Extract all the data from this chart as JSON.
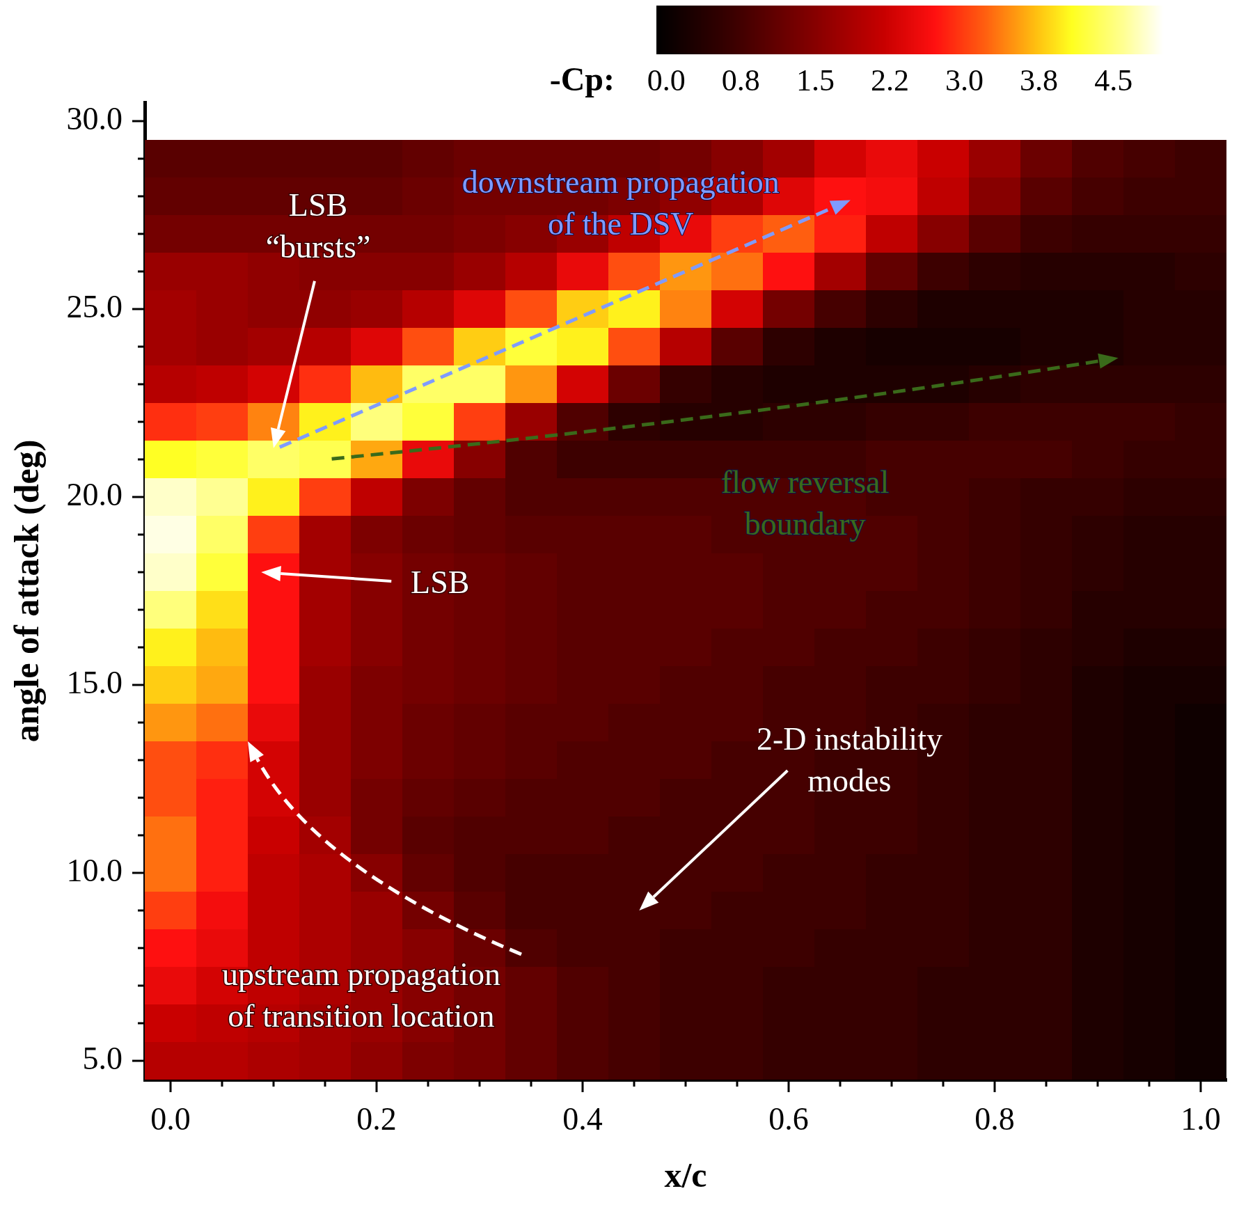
{
  "chart_data": {
    "type": "heatmap",
    "xlabel": "x/c",
    "ylabel": "angle of attack (deg)",
    "clabel": "-Cp:",
    "categories": [
      "0.0",
      null,
      null,
      null,
      "0.2",
      null,
      null,
      null,
      "0.4",
      null,
      null,
      null,
      "0.6",
      null,
      null,
      null,
      "0.8",
      null,
      null,
      null,
      "1.0"
    ],
    "y_categories": [
      "30.0",
      null,
      null,
      null,
      null,
      "25.0",
      null,
      null,
      null,
      null,
      "20.0",
      null,
      null,
      null,
      null,
      "15.0",
      null,
      null,
      null,
      null,
      "10.0",
      null,
      null,
      null,
      null,
      "5.0"
    ],
    "clim": [
      -0.1,
      5.0
    ],
    "cticks": [
      {
        "value": 0,
        "label": "0.0"
      },
      {
        "value": 0.75,
        "label": "0.8"
      },
      {
        "value": 1.5,
        "label": "1.5"
      },
      {
        "value": 2.25,
        "label": "2.2"
      },
      {
        "value": 3.0,
        "label": "3.0"
      },
      {
        "value": 3.75,
        "label": "3.8"
      },
      {
        "value": 4.5,
        "label": "4.5"
      }
    ],
    "cells": [
      [
        null,
        null,
        null,
        null,
        null,
        null,
        null,
        null,
        null,
        null,
        null,
        null,
        null,
        null,
        null,
        null,
        null,
        null,
        null,
        null,
        null
      ],
      [
        1.0,
        1.0,
        1.0,
        1.0,
        1.0,
        1.1,
        1.2,
        1.2,
        1.2,
        1.2,
        1.3,
        1.5,
        1.8,
        2.3,
        2.5,
        2.2,
        1.7,
        1.2,
        0.9,
        0.8,
        0.7
      ],
      [
        1.1,
        1.1,
        1.1,
        1.1,
        1.1,
        1.2,
        1.3,
        1.3,
        1.3,
        1.4,
        1.6,
        1.9,
        2.4,
        2.7,
        2.6,
        2.1,
        1.5,
        1.0,
        0.8,
        0.7,
        0.7
      ],
      [
        1.3,
        1.3,
        1.3,
        1.3,
        1.3,
        1.3,
        1.4,
        1.5,
        1.7,
        2.1,
        2.5,
        3.0,
        3.2,
        2.8,
        2.1,
        1.5,
        1.0,
        0.7,
        0.6,
        0.6,
        0.6
      ],
      [
        1.7,
        1.7,
        1.6,
        1.5,
        1.5,
        1.5,
        1.7,
        2.0,
        2.5,
        3.1,
        3.5,
        3.3,
        2.7,
        1.8,
        1.1,
        0.7,
        0.5,
        0.4,
        0.4,
        0.4,
        0.5
      ],
      [
        1.8,
        1.7,
        1.6,
        1.6,
        1.7,
        2.0,
        2.4,
        3.1,
        3.8,
        4.0,
        3.4,
        2.3,
        1.3,
        0.8,
        0.5,
        0.3,
        0.3,
        0.3,
        0.3,
        0.4,
        0.4
      ],
      [
        1.8,
        1.7,
        1.8,
        2.0,
        2.4,
        3.1,
        3.8,
        4.2,
        4.0,
        3.1,
        2.0,
        1.0,
        0.5,
        0.3,
        0.2,
        0.2,
        0.2,
        0.3,
        0.3,
        0.4,
        0.4
      ],
      [
        2.0,
        2.1,
        2.3,
        2.9,
        3.7,
        4.4,
        4.4,
        3.5,
        2.3,
        1.2,
        0.6,
        0.4,
        0.3,
        0.3,
        0.3,
        0.3,
        0.4,
        0.5,
        0.5,
        0.5,
        0.5
      ],
      [
        2.9,
        3.0,
        3.4,
        4.0,
        4.5,
        4.2,
        3.0,
        1.7,
        0.9,
        0.5,
        0.4,
        0.4,
        0.5,
        0.5,
        0.6,
        0.6,
        0.7,
        0.7,
        0.7,
        0.7,
        0.6
      ],
      [
        4.1,
        4.2,
        4.4,
        4.3,
        3.6,
        2.5,
        1.5,
        0.9,
        0.7,
        0.7,
        0.7,
        0.7,
        0.7,
        0.7,
        0.8,
        0.8,
        0.8,
        0.8,
        0.7,
        0.6,
        0.6
      ],
      [
        4.8,
        4.6,
        4.0,
        3.0,
        2.1,
        1.4,
        1.1,
        0.9,
        0.9,
        0.9,
        0.9,
        0.9,
        0.9,
        0.9,
        0.8,
        0.8,
        0.7,
        0.6,
        0.6,
        0.5,
        0.5
      ],
      [
        4.9,
        4.4,
        3.0,
        1.8,
        1.4,
        1.2,
        1.1,
        1.0,
        1.0,
        1.0,
        1.0,
        0.9,
        0.9,
        0.9,
        0.9,
        0.8,
        0.7,
        0.6,
        0.5,
        0.4,
        0.4
      ],
      [
        4.8,
        4.2,
        2.7,
        1.8,
        1.5,
        1.3,
        1.2,
        1.1,
        1.0,
        1.0,
        1.0,
        1.0,
        0.9,
        0.9,
        0.9,
        0.8,
        0.7,
        0.6,
        0.5,
        0.4,
        0.4
      ],
      [
        4.5,
        3.9,
        2.7,
        1.8,
        1.5,
        1.3,
        1.2,
        1.1,
        1.0,
        1.0,
        1.0,
        1.0,
        0.9,
        0.9,
        0.8,
        0.8,
        0.7,
        0.6,
        0.4,
        0.4,
        0.4
      ],
      [
        4.0,
        3.7,
        2.7,
        1.8,
        1.5,
        1.3,
        1.2,
        1.1,
        1.0,
        1.0,
        1.0,
        0.9,
        0.9,
        0.8,
        0.8,
        0.7,
        0.6,
        0.5,
        0.4,
        0.3,
        0.3
      ],
      [
        3.8,
        3.6,
        2.7,
        1.7,
        1.4,
        1.3,
        1.2,
        1.1,
        1.0,
        1.0,
        0.9,
        0.9,
        0.8,
        0.8,
        0.7,
        0.7,
        0.6,
        0.5,
        0.3,
        0.2,
        0.2
      ],
      [
        3.5,
        3.3,
        2.5,
        1.7,
        1.4,
        1.2,
        1.1,
        1.0,
        1.0,
        0.9,
        0.9,
        0.9,
        0.8,
        0.8,
        0.7,
        0.6,
        0.5,
        0.5,
        0.3,
        0.2,
        0.1
      ],
      [
        3.1,
        2.9,
        2.3,
        1.7,
        1.4,
        1.2,
        1.1,
        1.0,
        0.9,
        0.9,
        0.9,
        0.8,
        0.8,
        0.7,
        0.7,
        0.6,
        0.5,
        0.5,
        0.3,
        0.2,
        0.1
      ],
      [
        3.1,
        2.8,
        2.3,
        1.7,
        1.3,
        1.1,
        1.0,
        0.9,
        0.9,
        0.9,
        0.8,
        0.8,
        0.8,
        0.7,
        0.7,
        0.6,
        0.5,
        0.5,
        0.3,
        0.2,
        0.1
      ],
      [
        3.3,
        2.8,
        2.2,
        1.8,
        1.3,
        1.0,
        0.9,
        0.9,
        0.9,
        0.8,
        0.8,
        0.8,
        0.8,
        0.7,
        0.7,
        0.6,
        0.5,
        0.5,
        0.3,
        0.2,
        0.1
      ],
      [
        3.3,
        2.8,
        2.1,
        1.9,
        1.5,
        1.1,
        0.9,
        0.8,
        0.8,
        0.8,
        0.8,
        0.8,
        0.7,
        0.7,
        0.6,
        0.6,
        0.5,
        0.5,
        0.3,
        0.2,
        0.1
      ],
      [
        3.0,
        2.6,
        2.1,
        1.9,
        1.7,
        1.3,
        1.0,
        0.8,
        0.8,
        0.8,
        0.8,
        0.7,
        0.7,
        0.7,
        0.6,
        0.6,
        0.5,
        0.5,
        0.3,
        0.2,
        0.1
      ],
      [
        2.7,
        2.5,
        2.1,
        1.9,
        1.7,
        1.5,
        1.2,
        0.9,
        0.8,
        0.8,
        0.7,
        0.7,
        0.7,
        0.6,
        0.6,
        0.6,
        0.5,
        0.5,
        0.3,
        0.2,
        0.1
      ],
      [
        2.5,
        2.3,
        2.1,
        1.9,
        1.7,
        1.5,
        1.3,
        1.1,
        0.9,
        0.8,
        0.7,
        0.7,
        0.6,
        0.6,
        0.6,
        0.5,
        0.5,
        0.5,
        0.3,
        0.2,
        0.1
      ],
      [
        2.2,
        2.1,
        2.0,
        1.8,
        1.7,
        1.5,
        1.3,
        1.1,
        0.9,
        0.8,
        0.7,
        0.7,
        0.6,
        0.6,
        0.6,
        0.5,
        0.5,
        0.5,
        0.3,
        0.2,
        0.1
      ],
      [
        2.0,
        2.0,
        1.9,
        1.8,
        1.6,
        1.4,
        1.3,
        1.1,
        0.9,
        0.8,
        0.7,
        0.7,
        0.6,
        0.6,
        0.6,
        0.5,
        0.5,
        0.5,
        0.3,
        0.2,
        0.1
      ]
    ],
    "annotations": [
      "LSB\n“bursts”",
      "downstream propagation\nof the DSV",
      "flow reversal\nboundary",
      "LSB",
      "2-D instability\nmodes",
      "upstream propagation\nof transition location"
    ]
  }
}
